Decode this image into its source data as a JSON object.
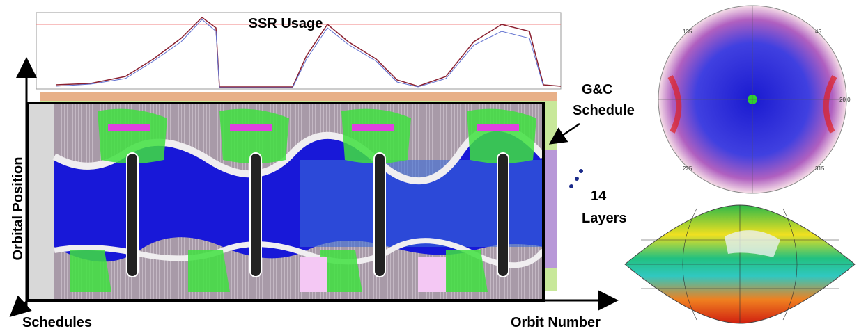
{
  "ssr": {
    "title": "SSR Usage"
  },
  "gc_schedule": {
    "lines": [
      "G&C",
      "Schedule"
    ]
  },
  "layers": {
    "lines": [
      "14",
      "Layers"
    ]
  },
  "axes": {
    "vertical": "Orbital Position",
    "diagonal": "Schedules",
    "horizontal": "Orbit Number"
  },
  "polar": {
    "labels": [
      "135",
      "45",
      "225",
      "315",
      "20.0"
    ]
  }
}
